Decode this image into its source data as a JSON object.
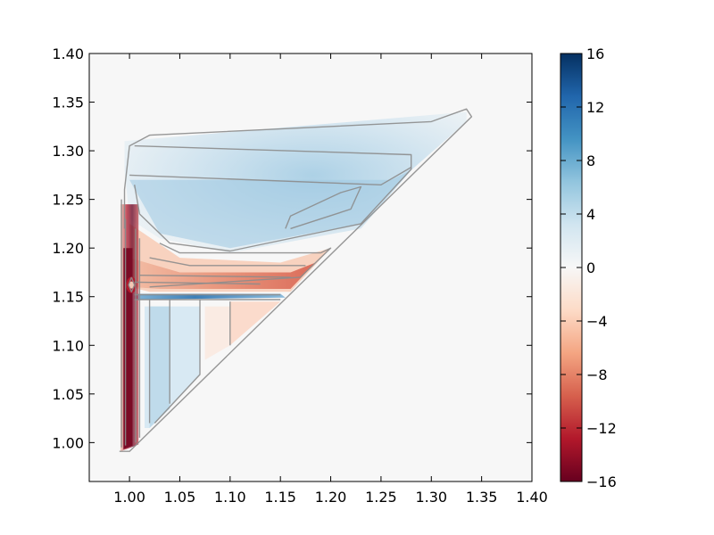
{
  "chart_data": {
    "type": "heatmap",
    "title": "",
    "xlabel": "",
    "ylabel": "",
    "xlim": [
      0.96,
      1.4
    ],
    "ylim": [
      0.96,
      1.4
    ],
    "x_ticks": [
      "1.00",
      "1.05",
      "1.10",
      "1.15",
      "1.20",
      "1.25",
      "1.30",
      "1.35",
      "1.40"
    ],
    "y_ticks": [
      "1.00",
      "1.05",
      "1.10",
      "1.15",
      "1.20",
      "1.25",
      "1.30",
      "1.35",
      "1.40"
    ],
    "x_tick_values": [
      1.0,
      1.05,
      1.1,
      1.15,
      1.2,
      1.25,
      1.3,
      1.35,
      1.4
    ],
    "y_tick_values": [
      1.0,
      1.05,
      1.1,
      1.15,
      1.2,
      1.25,
      1.3,
      1.35,
      1.4
    ],
    "colorbar": {
      "vmin": -16,
      "vmax": 16,
      "ticks": [
        "16",
        "12",
        "8",
        "4",
        "0",
        "−4",
        "−8",
        "−12",
        "−16"
      ],
      "tick_values": [
        16,
        12,
        8,
        4,
        0,
        -4,
        -8,
        -12,
        -16
      ],
      "colormap": "RdBu",
      "colors": [
        "#67001f",
        "#b2182b",
        "#d6604d",
        "#f4a582",
        "#fddbc7",
        "#f7f7f7",
        "#d1e5f0",
        "#92c5de",
        "#4393c3",
        "#2166ac",
        "#053061"
      ]
    },
    "domain": "triangular region y >= x, bounded near x = 0.99",
    "features": [
      {
        "name": "negative ridge",
        "x": 1.0,
        "y_range": [
          0.99,
          1.15
        ],
        "value": -16
      },
      {
        "name": "negative band",
        "y": 1.16,
        "x_range": [
          1.0,
          1.2
        ],
        "value": -10
      },
      {
        "name": "positive band",
        "y": 1.15,
        "x_range": [
          1.01,
          1.15
        ],
        "value": 8
      },
      {
        "name": "positive plateau",
        "x_range": [
          1.0,
          1.34
        ],
        "y_range": [
          1.2,
          1.32
        ],
        "value": 3
      },
      {
        "name": "weak negative patch",
        "x_range": [
          1.1,
          1.15
        ],
        "y_range": [
          1.1,
          1.15
        ],
        "value": -2
      }
    ],
    "grid": false,
    "legend": "colorbar-right"
  }
}
